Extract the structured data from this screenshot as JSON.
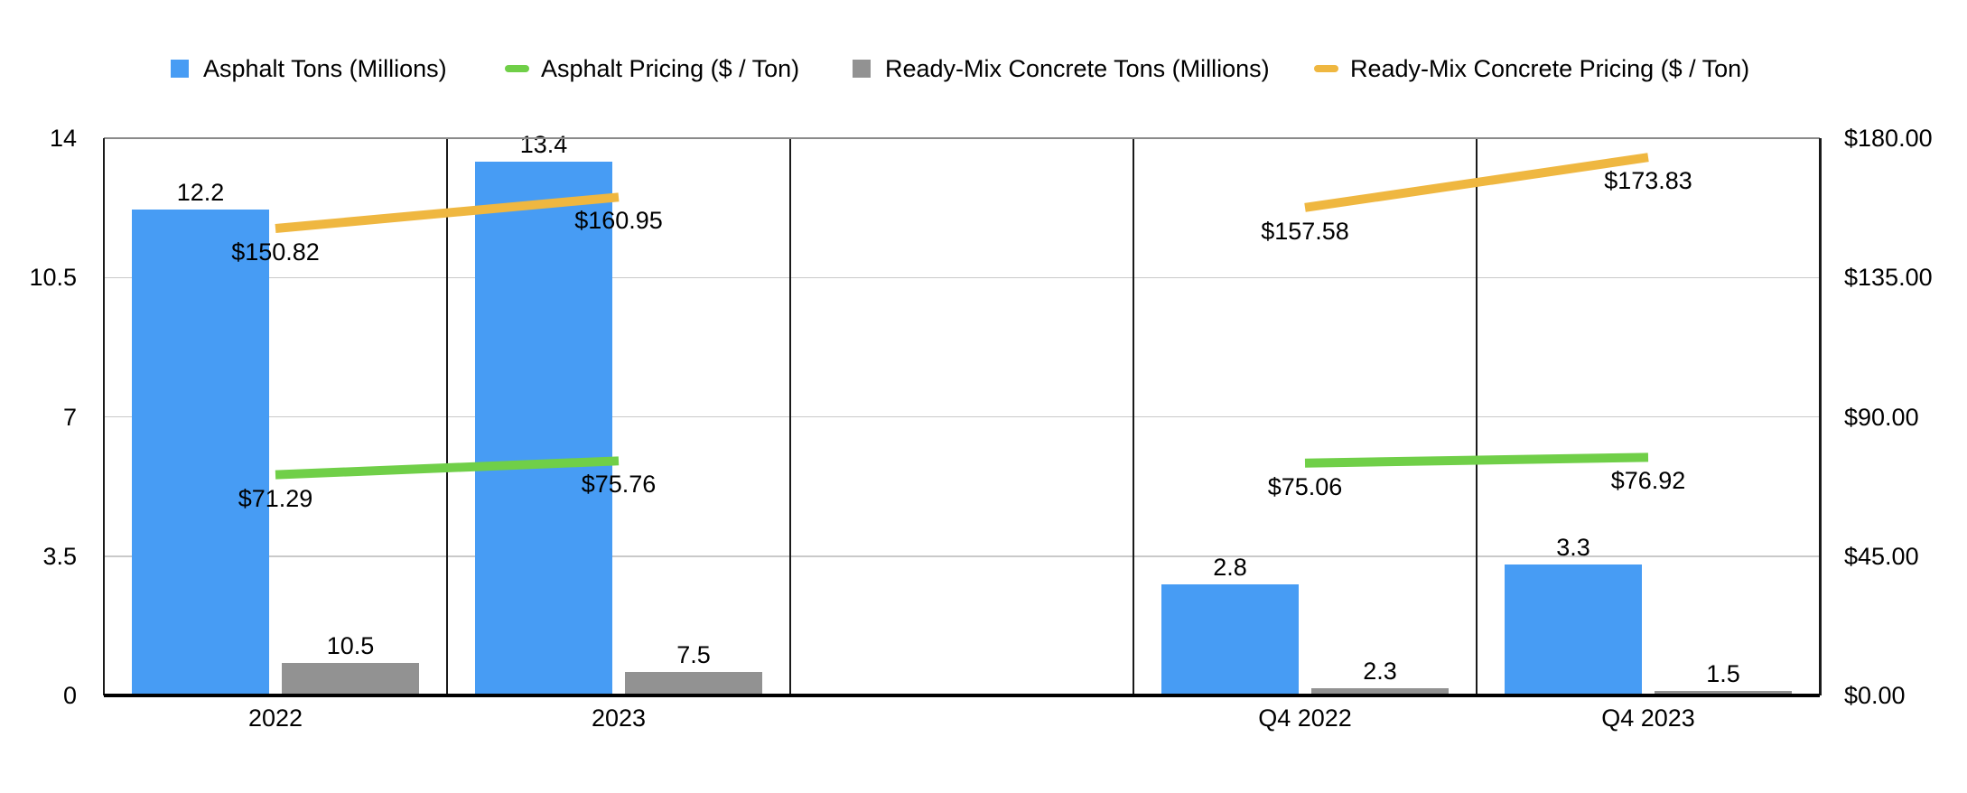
{
  "legend": {
    "items": [
      {
        "label": "Asphalt Tons (Millions)",
        "marker": "square",
        "color": "#479CF4"
      },
      {
        "label": "Asphalt Pricing ($ / Ton)",
        "marker": "dash",
        "color": "#70CF48"
      },
      {
        "label": "Ready-Mix Concrete Tons (Millions)",
        "marker": "square",
        "color": "#929292"
      },
      {
        "label": "Ready-Mix Concrete Pricing ($ / Ton)",
        "marker": "dash",
        "color": "#EFB740"
      }
    ]
  },
  "chart_data": {
    "type": "bar",
    "subtype": "combo-bar-line-dual-axis",
    "title": "",
    "categories": [
      "2022",
      "2023",
      "",
      "Q4 2022",
      "Q4 2023"
    ],
    "series": [
      {
        "name": "Asphalt Tons (Millions)",
        "kind": "bar",
        "axis": "left",
        "color": "#479CF4",
        "values": [
          12.2,
          13.4,
          null,
          2.8,
          3.3
        ],
        "data_labels": [
          "12.2",
          "13.4",
          "",
          "2.8",
          "3.3"
        ]
      },
      {
        "name": "Asphalt Pricing ($ / Ton)",
        "kind": "line",
        "axis": "right",
        "color": "#70CF48",
        "values": [
          71.29,
          75.76,
          null,
          75.06,
          76.92
        ],
        "data_labels": [
          "$71.29",
          "$75.76",
          "",
          "$75.06",
          "$76.92"
        ]
      },
      {
        "name": "Ready-Mix Concrete Tons (Millions)",
        "kind": "bar",
        "axis": "right",
        "color": "#929292",
        "values": [
          10.5,
          7.5,
          null,
          2.3,
          1.5
        ],
        "data_labels": [
          "10.5",
          "7.5",
          "",
          "2.3",
          "1.5"
        ]
      },
      {
        "name": "Ready-Mix Concrete Pricing ($ / Ton)",
        "kind": "line",
        "axis": "right",
        "color": "#EFB740",
        "values": [
          150.82,
          160.95,
          null,
          157.58,
          173.83
        ],
        "data_labels": [
          "$150.82",
          "$160.95",
          "",
          "$157.58",
          "$173.83"
        ]
      }
    ],
    "left_axis": {
      "min": 0,
      "max": 14,
      "tick_labels": [
        "14",
        "10.5",
        "7",
        "3.5",
        "0"
      ]
    },
    "right_axis": {
      "min": 0,
      "max": 180,
      "tick_labels": [
        "$180.00",
        "$135.00",
        "$90.00",
        "$45.00",
        "$0.00"
      ]
    },
    "grid": true,
    "legend_position": "top",
    "colors": {
      "grid": "#C9C9C9",
      "frame": "#1A1A1A",
      "baseline": "#000000",
      "text": "#000000",
      "background": "#FFFFFF"
    }
  }
}
